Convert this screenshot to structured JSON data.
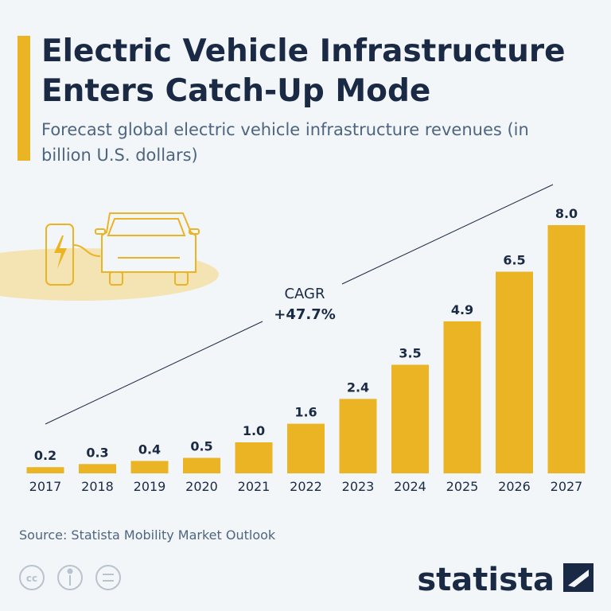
{
  "chart_data": {
    "type": "bar",
    "title": "Electric Vehicle Infrastructure Enters Catch-Up Mode",
    "subtitle": "Forecast global electric vehicle infrastructure revenues (in billion U.S. dollars)",
    "categories": [
      "2017",
      "2018",
      "2019",
      "2020",
      "2021",
      "2022",
      "2023",
      "2024",
      "2025",
      "2026",
      "2027"
    ],
    "values": [
      0.2,
      0.3,
      0.4,
      0.5,
      1.0,
      1.6,
      2.4,
      3.5,
      4.9,
      6.5,
      8.0
    ],
    "value_labels": [
      "0.2",
      "0.3",
      "0.4",
      "0.5",
      "1.0",
      "1.6",
      "2.4",
      "3.5",
      "4.9",
      "6.5",
      "8.0"
    ],
    "color": "#ebb425",
    "ylim": [
      0,
      8
    ],
    "annotations": [
      "CAGR",
      "+47.7%"
    ],
    "source": "Source: Statista Mobility Market Outlook",
    "brand": "statista"
  }
}
